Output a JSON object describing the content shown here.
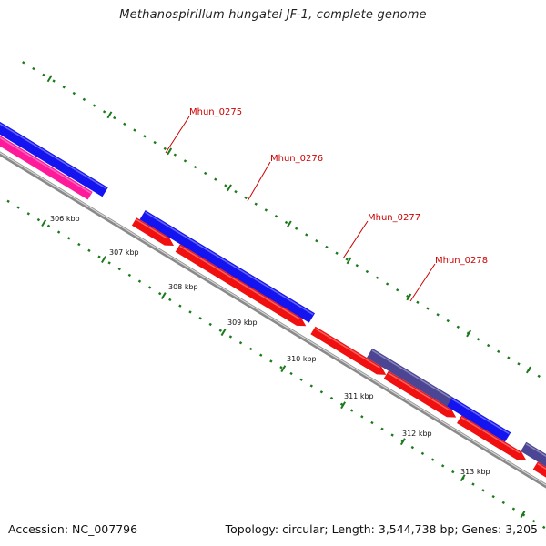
{
  "title": "Methanospirillum hungatei JF-1, complete genome",
  "footer": {
    "accession": "Accession: NC_007796",
    "stats": "Topology: circular; Length: 3,544,738 bp; Genes: 3,205"
  },
  "colors": {
    "backbone": "#8a8a8a",
    "forward_cds": "#1414f0",
    "reverse_cds": "#f01010",
    "other_reverse": "#ff1a9c",
    "other_forward": "#4b4594",
    "ticks": "#1a7a1a",
    "label": "#cc0000"
  },
  "axis": {
    "tick_labels": [
      "306 kbp",
      "307 kbp",
      "308 kbp",
      "309 kbp",
      "310 kbp",
      "311 kbp",
      "312 kbp",
      "313 kbp"
    ]
  },
  "gene_labels": [
    "Mhun_0275",
    "Mhun_0276",
    "Mhun_0277",
    "Mhun_0278"
  ]
}
